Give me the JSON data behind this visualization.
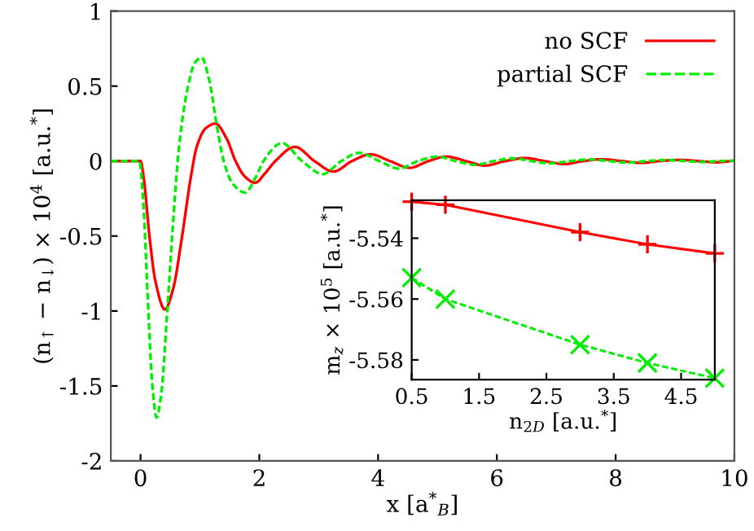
{
  "chart_data": [
    {
      "type": "line",
      "xlabel": "x [a$^{*}$$_{B}$]",
      "ylabel": "(n$_{↑}$ − n$_{↓}$) × 10$^{4}$ [a.u.$^{*}$]",
      "xlim": [
        -0.5,
        10
      ],
      "ylim": [
        -2,
        1
      ],
      "xticks": [
        0,
        2,
        4,
        6,
        8,
        10
      ],
      "yticks": [
        -2,
        -1.5,
        -1,
        -0.5,
        0,
        0.5,
        1
      ],
      "legend": "top right",
      "grid": false,
      "marker": "none",
      "series": [
        {
          "name": "no SCF",
          "color": "#ff0000",
          "line_style": "solid",
          "x": [
            -0.5,
            0,
            0.05,
            0.15,
            0.25,
            0.41,
            0.55,
            0.7,
            0.85,
            0.95,
            1.1,
            1.26,
            1.45,
            1.6,
            1.75,
            1.93,
            2.1,
            2.27,
            2.6,
            2.93,
            3.25,
            3.56,
            3.87,
            4.2,
            4.53,
            4.85,
            5.15,
            5.48,
            5.8,
            6.14,
            6.48,
            6.8,
            7.14,
            7.45,
            7.77,
            8.1,
            8.42,
            8.75,
            9.07,
            9.4,
            9.7,
            10
          ],
          "values": [
            0,
            0,
            -0.1,
            -0.5,
            -0.8,
            -0.99,
            -0.85,
            -0.5,
            -0.1,
            0.1,
            0.22,
            0.25,
            0.15,
            0,
            -0.1,
            -0.145,
            -0.08,
            0,
            0.095,
            0,
            -0.07,
            0,
            0.045,
            0,
            -0.045,
            0,
            0.03,
            0,
            -0.03,
            0,
            0.02,
            0,
            -0.02,
            0,
            0.012,
            0,
            -0.012,
            0,
            0.008,
            0,
            -0.008,
            0.003
          ]
        },
        {
          "name": "partial SCF",
          "color": "#00ee00",
          "line_style": "dashed",
          "x": [
            -0.5,
            -0.02,
            0.05,
            0.12,
            0.2,
            0.27,
            0.35,
            0.45,
            0.55,
            0.65,
            0.8,
            0.92,
            1.03,
            1.15,
            1.3,
            1.4,
            1.55,
            1.76,
            1.95,
            2.07,
            2.38,
            2.72,
            3.07,
            3.38,
            3.68,
            4.02,
            4.35,
            4.67,
            4.99,
            5.31,
            5.63,
            5.95,
            6.27,
            6.58,
            6.9,
            7.23,
            7.57,
            7.88,
            8.2,
            8.52,
            8.84,
            9.16,
            9.48,
            9.74,
            10
          ],
          "values": [
            0,
            0,
            -0.3,
            -0.9,
            -1.5,
            -1.71,
            -1.55,
            -1,
            -0.4,
            0.1,
            0.5,
            0.66,
            0.69,
            0.55,
            0.2,
            0,
            -0.15,
            -0.21,
            -0.1,
            0,
            0.12,
            0,
            -0.087,
            0,
            0.055,
            0,
            -0.05,
            0,
            0.03,
            0,
            -0.025,
            0,
            0.018,
            0,
            -0.015,
            0,
            0.011,
            0,
            -0.01,
            0,
            0.007,
            0,
            -0.006,
            0,
            0.002
          ]
        }
      ]
    },
    {
      "type": "line",
      "xlabel": "n$_{2D}$ [a.u.$^{*}$]",
      "ylabel": "m$_{z}$ × 10$^{5}$ [a.u.$^{*}$]",
      "xlim": [
        0.5,
        5
      ],
      "ylim": [
        -5.5865,
        -5.5275
      ],
      "xticks": [
        0.5,
        1.5,
        2.5,
        3.5,
        4.5
      ],
      "yticks": [
        -5.58,
        -5.56,
        -5.54
      ],
      "legend": false,
      "grid": false,
      "series": [
        {
          "color": "#ff0000",
          "line_style": "solid",
          "marker": "plus",
          "x": [
            0.5,
            1,
            3,
            4,
            5
          ],
          "values": [
            -5.528,
            -5.529,
            -5.538,
            -5.542,
            -5.545
          ]
        },
        {
          "color": "#00ee00",
          "line_style": "dashed",
          "marker": "cross",
          "x": [
            0.5,
            1,
            3,
            4,
            5
          ],
          "values": [
            -5.553,
            -5.56,
            -5.575,
            -5.581,
            -5.586
          ]
        }
      ]
    }
  ]
}
